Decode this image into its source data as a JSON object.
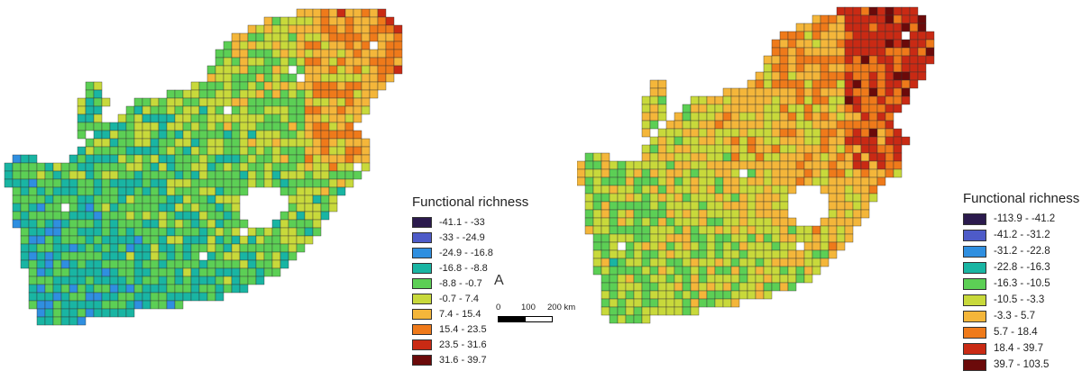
{
  "left_map": {
    "legend_title": "Functional richness",
    "classes": [
      {
        "label": "-41.1 - -33",
        "color": "#2b1a4d"
      },
      {
        "label": "-33 - -24.9",
        "color": "#4e5bc8"
      },
      {
        "label": "-24.9 - -16.8",
        "color": "#2f8fe0"
      },
      {
        "label": "-16.8 - -8.8",
        "color": "#19b5a3"
      },
      {
        "label": "-8.8 - -0.7",
        "color": "#5ccf55"
      },
      {
        "label": "-0.7 - 7.4",
        "color": "#c8d93b"
      },
      {
        "label": "7.4 - 15.4",
        "color": "#f4b63a"
      },
      {
        "label": "15.4 - 23.5",
        "color": "#ef7a1a"
      },
      {
        "label": "23.5 - 31.6",
        "color": "#c92a14"
      },
      {
        "label": "31.6 - 39.7",
        "color": "#6b0a0a"
      }
    ]
  },
  "right_map": {
    "legend_title": "Functional richness",
    "classes": [
      {
        "label": "-113.9 - -41.2",
        "color": "#2b1a4d"
      },
      {
        "label": "-41.2 - -31.2",
        "color": "#4e5bc8"
      },
      {
        "label": "-31.2 - -22.8",
        "color": "#2f8fe0"
      },
      {
        "label": "-22.8 - -16.3",
        "color": "#19b5a3"
      },
      {
        "label": "-16.3 - -10.5",
        "color": "#5ccf55"
      },
      {
        "label": "-10.5 - -3.3",
        "color": "#c8d93b"
      },
      {
        "label": "-3.3 - 5.7",
        "color": "#f4b63a"
      },
      {
        "label": "5.7 - 18.4",
        "color": "#ef7a1a"
      },
      {
        "label": "18.4 - 39.7",
        "color": "#c92a14"
      },
      {
        "label": "39.7 - 103.5",
        "color": "#6b0a0a"
      }
    ]
  },
  "north_arrow": "A",
  "scale_bar": {
    "labels": [
      "0",
      "100",
      "200 km"
    ]
  }
}
